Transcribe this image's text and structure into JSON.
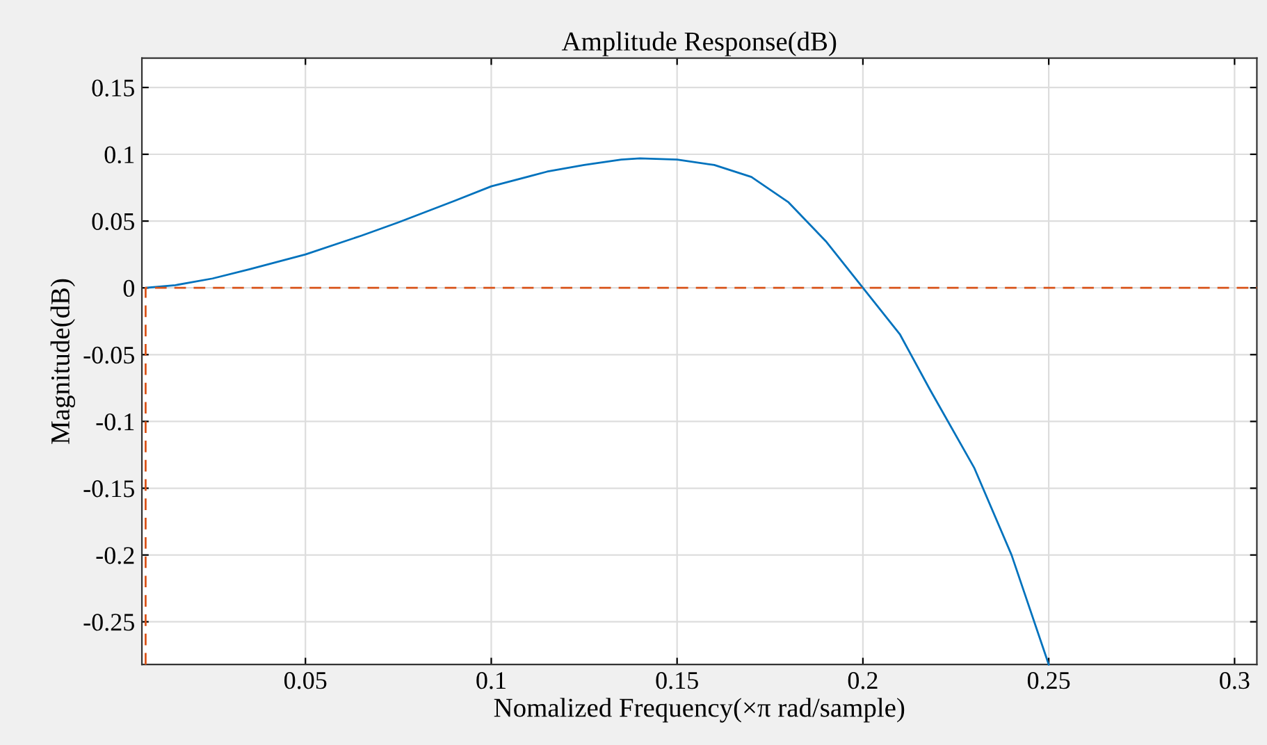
{
  "chart_data": {
    "type": "line",
    "title": "Amplitude Response(dB)",
    "xlabel": "Nomalized Frequency(×π rad/sample)",
    "ylabel": "Magnitude(dB)",
    "xlim": [
      0.006,
      0.306
    ],
    "ylim": [
      -0.282,
      0.172
    ],
    "xticks": [
      0.05,
      0.1,
      0.15,
      0.2,
      0.25,
      0.3
    ],
    "yticks": [
      -0.25,
      -0.2,
      -0.15,
      -0.1,
      -0.05,
      0,
      0.05,
      0.1,
      0.15
    ],
    "grid": true,
    "series": [
      {
        "color": "#0072bd",
        "x": [
          0.007,
          0.015,
          0.025,
          0.035,
          0.05,
          0.065,
          0.075,
          0.09,
          0.1,
          0.115,
          0.125,
          0.135,
          0.14,
          0.15,
          0.16,
          0.17,
          0.18,
          0.19,
          0.2,
          0.21,
          0.218,
          0.23,
          0.24,
          0.25
        ],
        "values": [
          0,
          0.002,
          0.007,
          0.014,
          0.025,
          0.039,
          0.049,
          0.065,
          0.076,
          0.087,
          0.092,
          0.096,
          0.097,
          0.096,
          0.092,
          0.083,
          0.064,
          0.035,
          0,
          -0.035,
          -0.076,
          -0.135,
          -0.2,
          -0.282
        ]
      },
      {
        "color": "#d95319",
        "line_style": "dashed",
        "x": [
          0.007,
          0.007,
          0.306
        ],
        "values": [
          -0.282,
          0,
          0
        ]
      }
    ]
  }
}
